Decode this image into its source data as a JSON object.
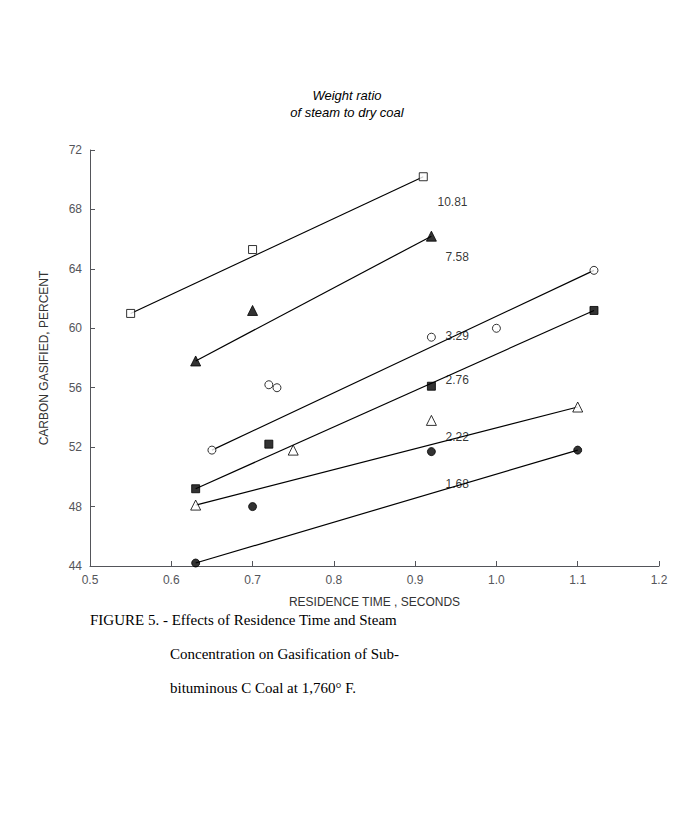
{
  "chart_data": {
    "type": "scatter",
    "title": "Weight ratio\nof steam to dry coal",
    "x_label": "RESIDENCE TIME , SECONDS",
    "y_label": "CARBON GASIFIED, PERCENT",
    "caption": [
      "FIGURE 5. - Effects of Residence Time and Steam",
      "Concentration on Gasification of Sub-",
      "bituminous C Coal at 1,760° F."
    ],
    "xlim": [
      0.5,
      1.2
    ],
    "ylim": [
      44,
      72
    ],
    "xticks": [
      0.5,
      0.6,
      0.7,
      0.8,
      0.9,
      {
        "value": 1.0,
        "label": "1.0"
      },
      1.1,
      1.2
    ],
    "yticks": [
      44,
      48,
      52,
      56,
      60,
      64,
      68,
      72
    ],
    "grid": false,
    "series": [
      {
        "name": "10.81",
        "marker": "square-open",
        "color": "#000000",
        "x": [
          0.55,
          0.7,
          0.91
        ],
        "values": [
          61.0,
          65.3,
          70.2
        ],
        "trend_x": [
          0.55,
          0.91
        ],
        "trend_values": [
          61.0,
          70.2
        ]
      },
      {
        "name": "7.58",
        "marker": "triangle",
        "color": "#000000",
        "x": [
          0.63,
          0.7,
          0.92
        ],
        "values": [
          57.8,
          61.2,
          66.2
        ],
        "trend_x": [
          0.63,
          0.92
        ],
        "trend_values": [
          57.8,
          66.2
        ]
      },
      {
        "name": "3.29",
        "marker": "circle-open",
        "color": "#000000",
        "x": [
          0.65,
          0.72,
          0.73,
          0.92,
          1.0,
          1.12
        ],
        "values": [
          51.8,
          56.2,
          56.0,
          59.4,
          60.0,
          63.9
        ],
        "trend_x": [
          0.65,
          1.12
        ],
        "trend_values": [
          51.8,
          63.9
        ]
      },
      {
        "name": "2.76",
        "marker": "square",
        "color": "#000000",
        "x": [
          0.63,
          0.72,
          0.92,
          1.12
        ],
        "values": [
          49.2,
          52.2,
          56.1,
          61.2
        ],
        "trend_x": [
          0.63,
          1.12
        ],
        "trend_values": [
          49.2,
          61.2
        ]
      },
      {
        "name": "2.22",
        "marker": "triangle-open",
        "color": "#000000",
        "x": [
          0.63,
          0.75,
          0.92,
          1.1
        ],
        "values": [
          48.1,
          51.8,
          53.8,
          54.7
        ],
        "trend_x": [
          0.63,
          1.1
        ],
        "trend_values": [
          48.1,
          54.7
        ]
      },
      {
        "name": "1.68",
        "marker": "circle",
        "color": "#000000",
        "x": [
          0.63,
          0.7,
          0.92,
          1.1
        ],
        "values": [
          44.2,
          48.0,
          51.7,
          51.8
        ],
        "trend_x": [
          0.63,
          1.1
        ],
        "trend_values": [
          44.2,
          51.8
        ]
      }
    ],
    "annotations": [
      {
        "text": "10.81",
        "x": 0.925,
        "y": 68.5
      },
      {
        "text": "7.58",
        "x": 0.935,
        "y": 64.8
      },
      {
        "text": "3.29",
        "x": 0.935,
        "y": 59.5
      },
      {
        "text": "2.76",
        "x": 0.935,
        "y": 56.5
      },
      {
        "text": "2.22",
        "x": 0.935,
        "y": 52.7
      },
      {
        "text": "1.68",
        "x": 0.935,
        "y": 49.5
      }
    ]
  }
}
